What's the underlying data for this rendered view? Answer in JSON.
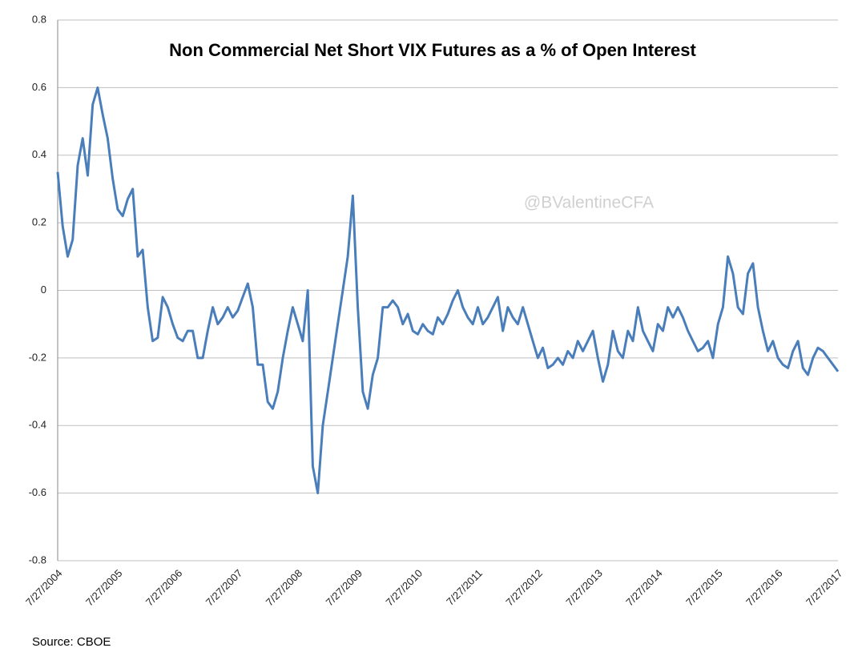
{
  "chart_data": {
    "type": "line",
    "title": "Non Commercial Net Short VIX Futures as a % of Open Interest",
    "watermark": "@BValentineCFA",
    "source": "Source: CBOE",
    "color": "#4a7ebb",
    "grid": true,
    "ylim": [
      -0.8,
      0.8
    ],
    "yticks": [
      -0.8,
      -0.6,
      -0.4,
      -0.2,
      0,
      0.2,
      0.4,
      0.6,
      0.8
    ],
    "categories": [
      "7/27/2004",
      null,
      null,
      null,
      null,
      null,
      null,
      null,
      null,
      null,
      null,
      null,
      "7/27/2005",
      null,
      null,
      null,
      null,
      null,
      null,
      null,
      null,
      null,
      null,
      null,
      "7/27/2006",
      null,
      null,
      null,
      null,
      null,
      null,
      null,
      null,
      null,
      null,
      null,
      "7/27/2007",
      null,
      null,
      null,
      null,
      null,
      null,
      null,
      null,
      null,
      null,
      null,
      "7/27/2008",
      null,
      null,
      null,
      null,
      null,
      null,
      null,
      null,
      null,
      null,
      null,
      "7/27/2009",
      null,
      null,
      null,
      null,
      null,
      null,
      null,
      null,
      null,
      null,
      null,
      "7/27/2010",
      null,
      null,
      null,
      null,
      null,
      null,
      null,
      null,
      null,
      null,
      null,
      "7/27/2011",
      null,
      null,
      null,
      null,
      null,
      null,
      null,
      null,
      null,
      null,
      null,
      "7/27/2012",
      null,
      null,
      null,
      null,
      null,
      null,
      null,
      null,
      null,
      null,
      null,
      "7/27/2013",
      null,
      null,
      null,
      null,
      null,
      null,
      null,
      null,
      null,
      null,
      null,
      "7/27/2014",
      null,
      null,
      null,
      null,
      null,
      null,
      null,
      null,
      null,
      null,
      null,
      "7/27/2015",
      null,
      null,
      null,
      null,
      null,
      null,
      null,
      null,
      null,
      null,
      null,
      "7/27/2016",
      null,
      null,
      null,
      null,
      null,
      null,
      null,
      null,
      null,
      null,
      null,
      "7/27/2017"
    ],
    "values": [
      0.35,
      0.19,
      0.1,
      0.15,
      0.37,
      0.45,
      0.34,
      0.55,
      0.6,
      0.52,
      0.45,
      0.33,
      0.24,
      0.22,
      0.27,
      0.3,
      0.1,
      0.12,
      -0.05,
      -0.15,
      -0.14,
      -0.02,
      -0.05,
      -0.1,
      -0.14,
      -0.15,
      -0.12,
      -0.12,
      -0.2,
      -0.2,
      -0.12,
      -0.05,
      -0.1,
      -0.08,
      -0.05,
      -0.08,
      -0.06,
      -0.02,
      0.02,
      -0.05,
      -0.22,
      -0.22,
      -0.33,
      -0.35,
      -0.3,
      -0.2,
      -0.12,
      -0.05,
      -0.1,
      -0.15,
      0.0,
      -0.52,
      -0.6,
      -0.4,
      -0.3,
      -0.2,
      -0.1,
      0.0,
      0.1,
      0.28,
      -0.05,
      -0.3,
      -0.35,
      -0.25,
      -0.2,
      -0.05,
      -0.05,
      -0.03,
      -0.05,
      -0.1,
      -0.07,
      -0.12,
      -0.13,
      -0.1,
      -0.12,
      -0.13,
      -0.08,
      -0.1,
      -0.07,
      -0.03,
      0.0,
      -0.05,
      -0.08,
      -0.1,
      -0.05,
      -0.1,
      -0.08,
      -0.05,
      -0.02,
      -0.12,
      -0.05,
      -0.08,
      -0.1,
      -0.05,
      -0.1,
      -0.15,
      -0.2,
      -0.17,
      -0.23,
      -0.22,
      -0.2,
      -0.22,
      -0.18,
      -0.2,
      -0.15,
      -0.18,
      -0.15,
      -0.12,
      -0.2,
      -0.27,
      -0.22,
      -0.12,
      -0.18,
      -0.2,
      -0.12,
      -0.15,
      -0.05,
      -0.12,
      -0.15,
      -0.18,
      -0.1,
      -0.12,
      -0.05,
      -0.08,
      -0.05,
      -0.08,
      -0.12,
      -0.15,
      -0.18,
      -0.17,
      -0.15,
      -0.2,
      -0.1,
      -0.05,
      0.1,
      0.05,
      -0.05,
      -0.07,
      0.05,
      0.08,
      -0.05,
      -0.12,
      -0.18,
      -0.15,
      -0.2,
      -0.22,
      -0.23,
      -0.18,
      -0.15,
      -0.23,
      -0.25,
      -0.2,
      -0.17,
      -0.18,
      -0.2,
      -0.22,
      -0.24
    ]
  }
}
